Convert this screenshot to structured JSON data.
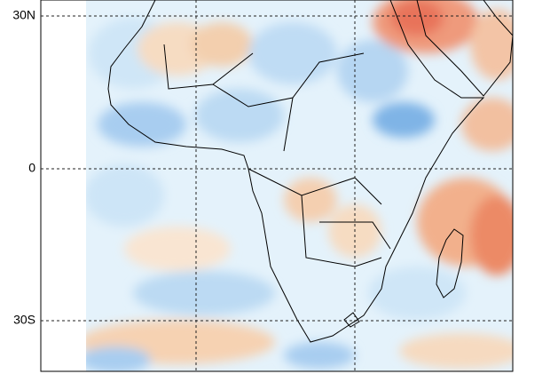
{
  "map": {
    "latitude_labels": [
      "30N",
      "0",
      "30S"
    ]
  }
}
